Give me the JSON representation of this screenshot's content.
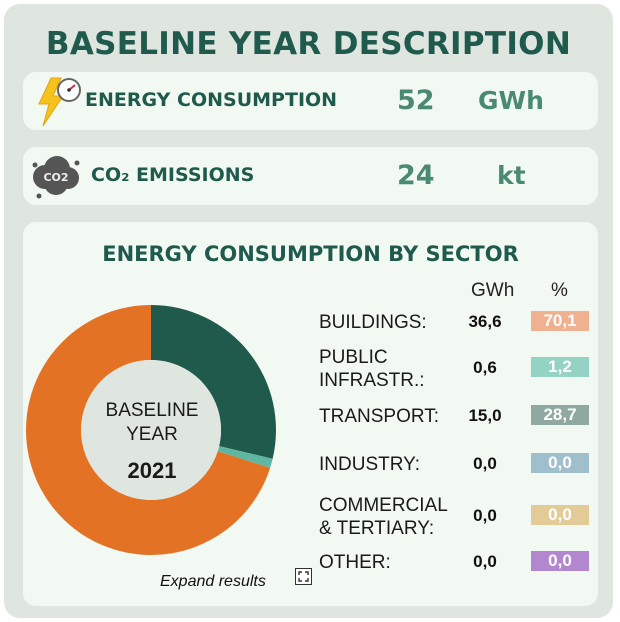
{
  "header": {
    "title": "BASELINE YEAR DESCRIPTION"
  },
  "metrics": {
    "energy": {
      "label": "ENERGY CONSUMPTION",
      "value": "52",
      "unit": "GWh"
    },
    "co2": {
      "label": "CO₂ EMISSIONS",
      "value": "24",
      "unit": "kt",
      "icon_text": "CO2"
    }
  },
  "sector": {
    "title": "ENERGY CONSUMPTION BY SECTOR",
    "col_value": "GWh",
    "col_pct": "%",
    "baseline_label_1": "BASELINE",
    "baseline_label_2": "YEAR",
    "baseline_year": "2021",
    "expand_label": "Expand results",
    "rows": [
      {
        "label": "BUILDINGS:",
        "value": "36,6",
        "pct": "70,1",
        "color": "#f0b191"
      },
      {
        "label": "PUBLIC\nINFRASTR.:",
        "value": "0,6",
        "pct": "1,2",
        "color": "#94d2c4"
      },
      {
        "label": "TRANSPORT:",
        "value": "15,0",
        "pct": "28,7",
        "color": "#8fa9a0"
      },
      {
        "label": "INDUSTRY:",
        "value": "0,0",
        "pct": "0,0",
        "color": "#9ebfcb"
      },
      {
        "label": "COMMERCIAL\n& TERTIARY:",
        "value": "0,0",
        "pct": "0,0",
        "color": "#e3cb97"
      },
      {
        "label": "OTHER:",
        "value": "0,0",
        "pct": "0,0",
        "color": "#b287d0"
      }
    ]
  },
  "chart_data": {
    "type": "pie",
    "categories": [
      "BUILDINGS",
      "PUBLIC INFRASTR.",
      "TRANSPORT",
      "INDUSTRY",
      "COMMERCIAL & TERTIARY",
      "OTHER"
    ],
    "values": [
      70.1,
      1.2,
      28.7,
      0.0,
      0.0,
      0.0
    ],
    "colors": [
      "#e37224",
      "#5fb7a3",
      "#1f5a4c",
      "#9ebfcb",
      "#e3cb97",
      "#b287d0"
    ]
  }
}
